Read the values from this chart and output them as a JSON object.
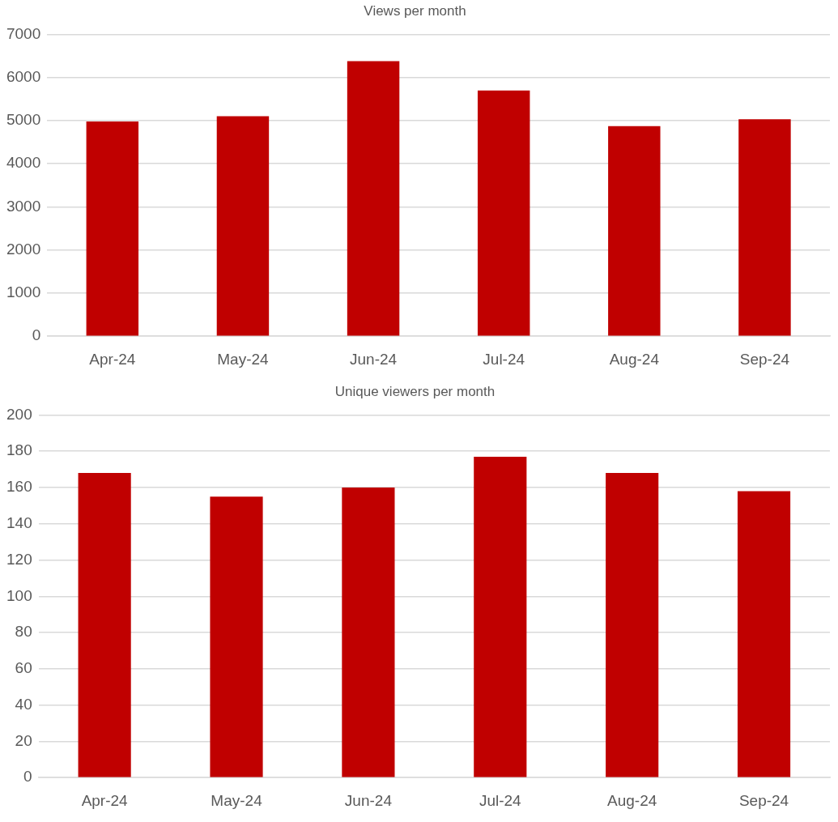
{
  "chart_data": [
    {
      "type": "bar",
      "title": "Views per month",
      "categories": [
        "Apr-24",
        "May-24",
        "Jun-24",
        "Jul-24",
        "Aug-24",
        "Sep-24"
      ],
      "values": [
        4980,
        5100,
        6380,
        5700,
        4870,
        5030
      ],
      "color": "#c00000",
      "ylim": [
        0,
        7000
      ],
      "yticks": [
        0,
        1000,
        2000,
        3000,
        4000,
        5000,
        6000,
        7000
      ],
      "grid": "y"
    },
    {
      "type": "bar",
      "title": "Unique viewers per month",
      "categories": [
        "Apr-24",
        "May-24",
        "Jun-24",
        "Jul-24",
        "Aug-24",
        "Sep-24"
      ],
      "values": [
        168,
        155,
        160,
        177,
        168,
        158
      ],
      "color": "#c00000",
      "ylim": [
        0,
        200
      ],
      "yticks": [
        0,
        20,
        40,
        60,
        80,
        100,
        120,
        140,
        160,
        180,
        200
      ],
      "grid": "y"
    }
  ]
}
